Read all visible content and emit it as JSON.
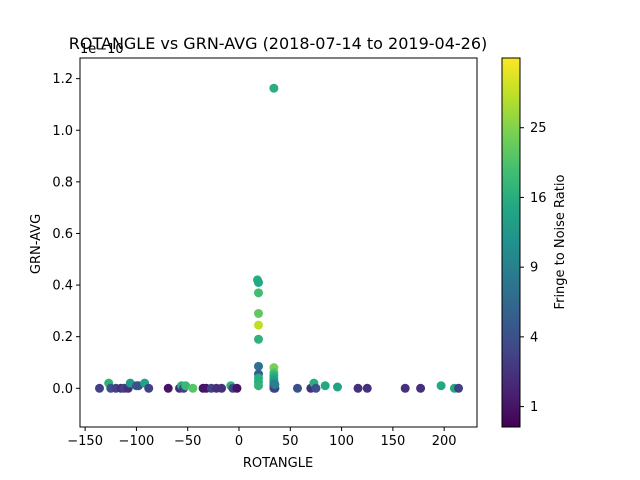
{
  "chart_data": {
    "type": "scatter",
    "title": "ROTANGLE vs GRN-AVG (2018-07-14 to 2019-04-26)",
    "xlabel": "ROTANGLE",
    "ylabel": "GRN-AVG",
    "offset_text": "1e−10",
    "xlim": [
      -155,
      232
    ],
    "ylim": [
      -0.15,
      1.28
    ],
    "xticks": [
      -150,
      -100,
      -50,
      0,
      50,
      100,
      150,
      200
    ],
    "xtick_labels": [
      "−150",
      "−100",
      "−50",
      "0",
      "50",
      "100",
      "150",
      "200"
    ],
    "yticks": [
      0.0,
      0.2,
      0.4,
      0.6,
      0.8,
      1.0,
      1.2
    ],
    "ytick_labels": [
      "0.0",
      "0.2",
      "0.4",
      "0.6",
      "0.8",
      "1.0",
      "1.2"
    ],
    "grid": false,
    "colorbar": {
      "label": "Fringe to Noise Ratio",
      "colormap": "viridis",
      "scale": "sqrt",
      "range": [
        0.5,
        36
      ],
      "ticks": [
        1,
        4,
        9,
        16,
        25
      ],
      "tick_labels": [
        "1",
        "4",
        "9",
        "16",
        "25"
      ]
    },
    "points": [
      {
        "x": -136,
        "y": 0.0,
        "c": 3
      },
      {
        "x": -127,
        "y": 0.02,
        "c": 17
      },
      {
        "x": -125,
        "y": 0.0,
        "c": 4
      },
      {
        "x": -120,
        "y": 0.0,
        "c": 3
      },
      {
        "x": -115,
        "y": 0.0,
        "c": 2
      },
      {
        "x": -112,
        "y": 0.0,
        "c": 3
      },
      {
        "x": -108,
        "y": 0.0,
        "c": 2
      },
      {
        "x": -106,
        "y": 0.02,
        "c": 13
      },
      {
        "x": -100,
        "y": 0.01,
        "c": 5
      },
      {
        "x": -98,
        "y": 0.01,
        "c": 4
      },
      {
        "x": -92,
        "y": 0.02,
        "c": 14
      },
      {
        "x": -88,
        "y": 0.0,
        "c": 3
      },
      {
        "x": -69,
        "y": 0.0,
        "c": 1
      },
      {
        "x": -58,
        "y": 0.0,
        "c": 2
      },
      {
        "x": -56,
        "y": 0.01,
        "c": 16
      },
      {
        "x": -54,
        "y": 0.0,
        "c": 3
      },
      {
        "x": -52,
        "y": 0.01,
        "c": 18
      },
      {
        "x": -45,
        "y": 0.0,
        "c": 21
      },
      {
        "x": -35,
        "y": 0.0,
        "c": 1
      },
      {
        "x": -32,
        "y": 0.0,
        "c": 1
      },
      {
        "x": -27,
        "y": 0.0,
        "c": 3
      },
      {
        "x": -22,
        "y": 0.0,
        "c": 2
      },
      {
        "x": -17,
        "y": 0.0,
        "c": 2
      },
      {
        "x": -8,
        "y": 0.01,
        "c": 17
      },
      {
        "x": -6,
        "y": 0.0,
        "c": 3
      },
      {
        "x": -2,
        "y": 0.0,
        "c": 1
      },
      {
        "x": 18,
        "y": 0.42,
        "c": 16
      },
      {
        "x": 19,
        "y": 0.41,
        "c": 15
      },
      {
        "x": 19,
        "y": 0.37,
        "c": 19
      },
      {
        "x": 19,
        "y": 0.29,
        "c": 22
      },
      {
        "x": 19,
        "y": 0.245,
        "c": 30
      },
      {
        "x": 19,
        "y": 0.19,
        "c": 17
      },
      {
        "x": 19,
        "y": 0.085,
        "c": 7
      },
      {
        "x": 19,
        "y": 0.055,
        "c": 5
      },
      {
        "x": 19,
        "y": 0.04,
        "c": 16
      },
      {
        "x": 19,
        "y": 0.025,
        "c": 16
      },
      {
        "x": 19,
        "y": 0.01,
        "c": 17
      },
      {
        "x": 34,
        "y": 1.163,
        "c": 16
      },
      {
        "x": 34,
        "y": 0.08,
        "c": 24
      },
      {
        "x": 34,
        "y": 0.06,
        "c": 20
      },
      {
        "x": 34,
        "y": 0.05,
        "c": 17
      },
      {
        "x": 34,
        "y": 0.04,
        "c": 15
      },
      {
        "x": 34,
        "y": 0.03,
        "c": 13
      },
      {
        "x": 34,
        "y": 0.02,
        "c": 11
      },
      {
        "x": 34,
        "y": 0.01,
        "c": 8
      },
      {
        "x": 34,
        "y": 0.005,
        "c": 6
      },
      {
        "x": 34,
        "y": 0.0,
        "c": 4
      },
      {
        "x": 35,
        "y": 0.0,
        "c": 3
      },
      {
        "x": 35,
        "y": 0.015,
        "c": 9
      },
      {
        "x": 57,
        "y": 0.0,
        "c": 4
      },
      {
        "x": 70,
        "y": 0.0,
        "c": 2
      },
      {
        "x": 73,
        "y": 0.02,
        "c": 16
      },
      {
        "x": 75,
        "y": 0.0,
        "c": 4
      },
      {
        "x": 84,
        "y": 0.01,
        "c": 15
      },
      {
        "x": 96,
        "y": 0.005,
        "c": 14
      },
      {
        "x": 116,
        "y": 0.0,
        "c": 2
      },
      {
        "x": 125,
        "y": 0.0,
        "c": 2
      },
      {
        "x": 162,
        "y": 0.0,
        "c": 2
      },
      {
        "x": 177,
        "y": 0.0,
        "c": 2
      },
      {
        "x": 197,
        "y": 0.01,
        "c": 15
      },
      {
        "x": 210,
        "y": 0.0,
        "c": 15
      },
      {
        "x": 214,
        "y": 0.0,
        "c": 3
      }
    ]
  }
}
